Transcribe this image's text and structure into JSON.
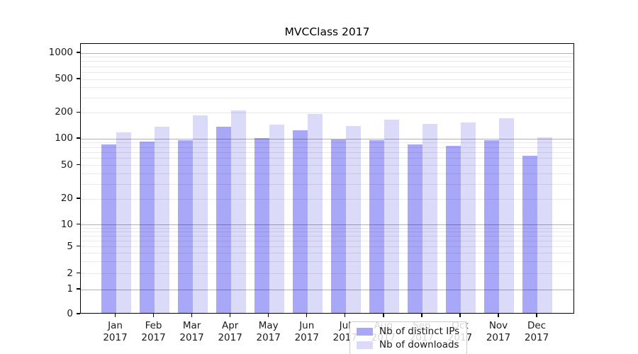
{
  "figure": {
    "background": "#ffffff"
  },
  "chart_data": {
    "type": "bar",
    "title": "MVCClass 2017",
    "x_months": [
      "Jan",
      "Feb",
      "Mar",
      "Apr",
      "May",
      "Jun",
      "Jul",
      "Aug",
      "Sep",
      "Oct",
      "Nov",
      "Dec"
    ],
    "x_year": "2017",
    "series": [
      {
        "name": "Nb of distinct IPs",
        "color": "#a9a8f8",
        "values": [
          86,
          91,
          96,
          137,
          100,
          124,
          97,
          95,
          86,
          82,
          96,
          64
        ]
      },
      {
        "name": "Nb of downloads",
        "color": "#dbdaf9",
        "values": [
          118,
          135,
          185,
          211,
          144,
          190,
          138,
          165,
          148,
          152,
          172,
          102
        ]
      }
    ],
    "yscale": "symlog",
    "ylim": [
      0,
      1280
    ],
    "yticks": [
      0,
      1,
      2,
      5,
      10,
      20,
      50,
      100,
      200,
      500,
      1000
    ],
    "grid": "horizontal major and log-minor gridlines",
    "legend_position": "lower center, inside plot"
  },
  "colors": {
    "major_grid": "#ababab",
    "minor_grid": "#ebebeb",
    "spine": "#000000",
    "text": "#1a1a1a"
  }
}
